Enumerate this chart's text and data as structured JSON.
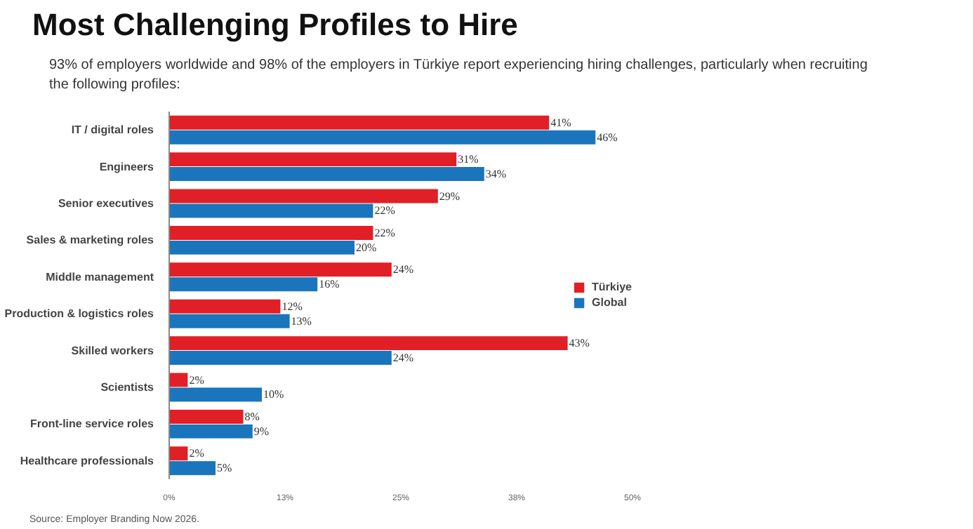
{
  "chart_data": {
    "type": "bar",
    "orientation": "horizontal",
    "title": "Most Challenging Profiles to Hire",
    "subtitle": "93% of employers worldwide and 98% of the employers in Türkiye report experiencing hiring challenges, particularly when recruiting the following profiles:",
    "categories": [
      "IT / digital roles",
      "Engineers",
      "Senior executives",
      "Sales & marketing roles",
      "Middle management",
      "Production & logistics roles",
      "Skilled workers",
      "Scientists",
      "Front-line service roles",
      "Healthcare professionals"
    ],
    "series": [
      {
        "name": "Türkiye",
        "color": "#e11f26",
        "values": [
          41,
          31,
          29,
          22,
          24,
          12,
          43,
          2,
          8,
          2
        ],
        "value_labels": [
          "41%",
          "31%",
          "29%",
          "22%",
          "24%",
          "12%",
          "43%",
          "2%",
          "8%",
          "2%"
        ]
      },
      {
        "name": "Global",
        "color": "#1b75bc",
        "values": [
          46,
          34,
          22,
          20,
          16,
          13,
          24,
          10,
          9,
          5
        ],
        "value_labels": [
          "46%",
          "34%",
          "22%",
          "20%",
          "16%",
          "13%",
          "24%",
          "10%",
          "9%",
          "5%"
        ]
      }
    ],
    "xlim": [
      0,
      50
    ],
    "xticks": [
      {
        "value": 0,
        "label": "0%"
      },
      {
        "value": 12.5,
        "label": "13%"
      },
      {
        "value": 25,
        "label": "25%"
      },
      {
        "value": 37.5,
        "label": "38%"
      },
      {
        "value": 50,
        "label": "50%"
      }
    ],
    "legend": "right",
    "grid": false,
    "annotations": [
      "Source: Employer Branding Now 2026."
    ]
  }
}
